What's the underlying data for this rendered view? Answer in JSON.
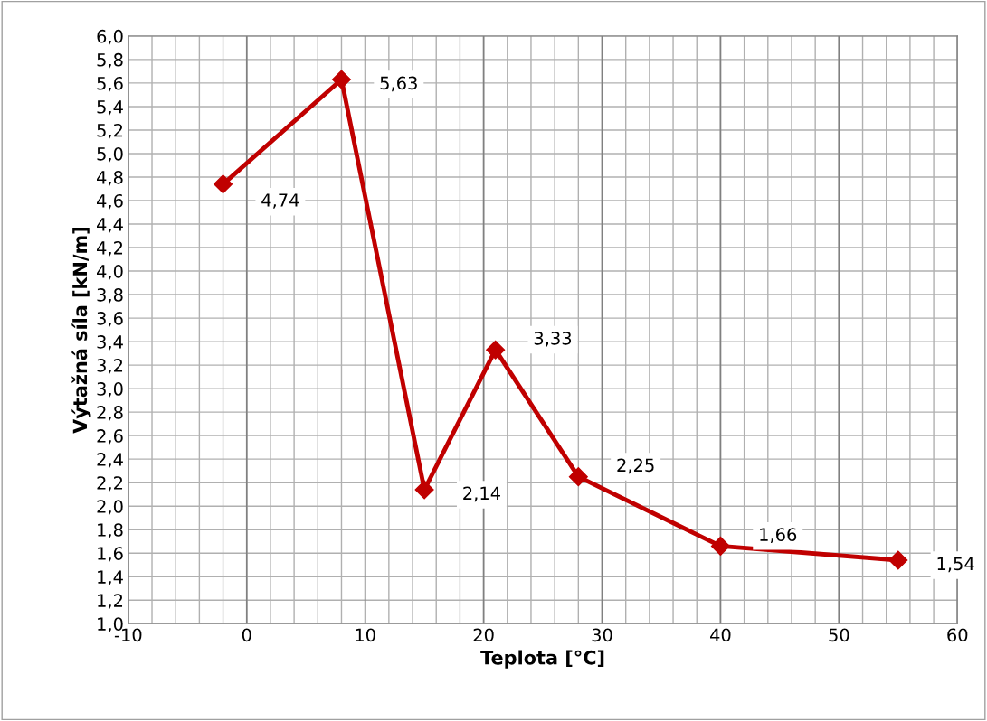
{
  "chart_data": {
    "type": "line",
    "xlabel": "Teplota [°C]",
    "ylabel": "Výtažná síla [kN/m]",
    "x": [
      -2,
      8,
      15,
      21,
      28,
      40,
      55
    ],
    "series": [
      {
        "color": "#c00000",
        "values": [
          4.74,
          5.63,
          2.14,
          3.33,
          2.25,
          1.66,
          1.54
        ],
        "value_labels": [
          "4,74",
          "5,63",
          "2,14",
          "3,33",
          "2,25",
          "1,66",
          "1,54"
        ]
      }
    ],
    "xlim": [
      -10,
      60
    ],
    "ylim": [
      1.0,
      6.0
    ],
    "xticks": [
      -10,
      {
        "value": -8,
        "label": null
      },
      {
        "value": -6,
        "label": null
      },
      {
        "value": -4,
        "label": null
      },
      {
        "value": -2,
        "label": null
      },
      0,
      {
        "value": 2,
        "label": null
      },
      {
        "value": 4,
        "label": null
      },
      {
        "value": 6,
        "label": null
      },
      {
        "value": 8,
        "label": null
      },
      10,
      {
        "value": 12,
        "label": null
      },
      {
        "value": 14,
        "label": null
      },
      {
        "value": 16,
        "label": null
      },
      {
        "value": 18,
        "label": null
      },
      20,
      {
        "value": 22,
        "label": null
      },
      {
        "value": 24,
        "label": null
      },
      {
        "value": 26,
        "label": null
      },
      {
        "value": 28,
        "label": null
      },
      30,
      {
        "value": 32,
        "label": null
      },
      {
        "value": 34,
        "label": null
      },
      {
        "value": 36,
        "label": null
      },
      {
        "value": 38,
        "label": null
      },
      40,
      {
        "value": 42,
        "label": null
      },
      {
        "value": 44,
        "label": null
      },
      {
        "value": 46,
        "label": null
      },
      {
        "value": 48,
        "label": null
      },
      50,
      {
        "value": 52,
        "label": null
      },
      {
        "value": 54,
        "label": null
      },
      {
        "value": 56,
        "label": null
      },
      {
        "value": 58,
        "label": null
      },
      60
    ],
    "yticks": [
      {
        "value": 1.0,
        "label": "1,0"
      },
      {
        "value": 1.2,
        "label": "1,2"
      },
      {
        "value": 1.4,
        "label": "1,4"
      },
      {
        "value": 1.6,
        "label": "1,6"
      },
      {
        "value": 1.8,
        "label": "1,8"
      },
      {
        "value": 2.0,
        "label": "2,0"
      },
      {
        "value": 2.2,
        "label": "2,2"
      },
      {
        "value": 2.4,
        "label": "2,4"
      },
      {
        "value": 2.6,
        "label": "2,6"
      },
      {
        "value": 2.8,
        "label": "2,8"
      },
      {
        "value": 3.0,
        "label": "3,0"
      },
      {
        "value": 3.2,
        "label": "3,2"
      },
      {
        "value": 3.4,
        "label": "3,4"
      },
      {
        "value": 3.6,
        "label": "3,6"
      },
      {
        "value": 3.8,
        "label": "3,8"
      },
      {
        "value": 4.0,
        "label": "4,0"
      },
      {
        "value": 4.2,
        "label": "4,2"
      },
      {
        "value": 4.4,
        "label": "4,4"
      },
      {
        "value": 4.6,
        "label": "4,6"
      },
      {
        "value": 4.8,
        "label": "4,8"
      },
      {
        "value": 5.0,
        "label": "5,0"
      },
      {
        "value": 5.2,
        "label": "5,2"
      },
      {
        "value": 5.4,
        "label": "5,4"
      },
      {
        "value": 5.6,
        "label": "5,6"
      },
      {
        "value": 5.8,
        "label": "5,8"
      },
      {
        "value": 6.0,
        "label": "6,0"
      }
    ],
    "grid": true,
    "legend": false,
    "marker": "diamond",
    "line_style": "solid"
  }
}
